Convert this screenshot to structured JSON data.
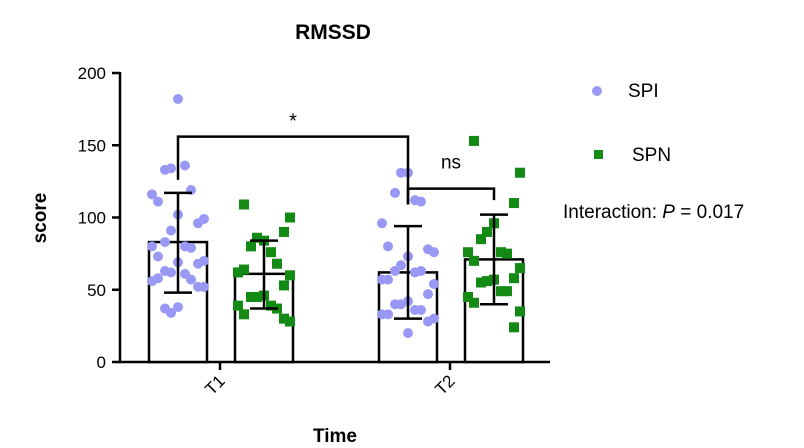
{
  "chart_data": {
    "type": "bar",
    "title": "RMSSD",
    "xlabel": "Time",
    "ylabel": "score",
    "ylim": [
      0,
      200
    ],
    "yticks": [
      "0",
      "50",
      "100",
      "150",
      "200"
    ],
    "categories": [
      "T1",
      "T2"
    ],
    "series": [
      {
        "name": "SPI",
        "color": "#9999f5",
        "marker": "circle",
        "means": [
          83,
          62
        ],
        "sd_low": [
          48,
          30
        ],
        "sd_high": [
          117,
          94
        ],
        "points": [
          [
            182,
            134,
            133,
            136,
            119,
            116,
            111,
            99,
            96,
            102,
            91,
            83,
            80,
            79,
            80,
            73,
            70,
            68,
            69,
            62,
            63,
            61,
            57,
            56,
            58,
            52,
            52,
            38,
            34,
            37
          ],
          [
            131,
            131,
            117,
            112,
            111,
            96,
            80,
            76,
            78,
            73,
            67,
            63,
            62,
            63,
            57,
            57,
            54,
            47,
            42,
            40,
            40,
            36,
            36,
            33,
            33,
            30,
            28,
            20
          ]
        ]
      },
      {
        "name": "SPN",
        "color": "#138a13",
        "marker": "square",
        "means": [
          61,
          71
        ],
        "sd_low": [
          37,
          40
        ],
        "sd_high": [
          84,
          102
        ],
        "points": [
          [
            109,
            100,
            90,
            84,
            86,
            80,
            76,
            68,
            62,
            64,
            60,
            53,
            46,
            45,
            45,
            39,
            37,
            39,
            33,
            28,
            30
          ],
          [
            153,
            131,
            110,
            96,
            90,
            85,
            76,
            75,
            76,
            70,
            65,
            58,
            57,
            56,
            55,
            49,
            49,
            45,
            41,
            35,
            24
          ]
        ]
      }
    ],
    "annotations": [
      {
        "text": "*",
        "between": "SPI T1 vs SPI T2",
        "level": 156
      },
      {
        "text": "ns",
        "between": "SPI T2 vs SPN T2",
        "level": 120
      }
    ],
    "interaction": {
      "label": "Interaction: ",
      "p_symbol": "P",
      "p_value": " = 0.017"
    },
    "legend_placement": "right"
  }
}
